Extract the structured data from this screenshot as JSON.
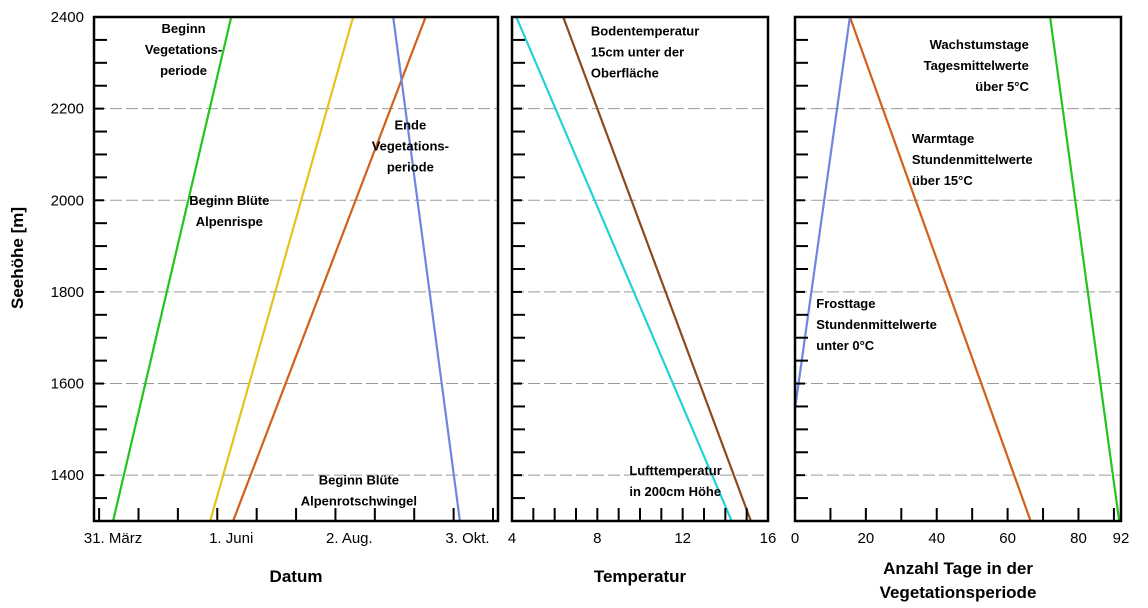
{
  "y_axis": {
    "label": "Seehöhe [m]",
    "range": [
      1300,
      2400
    ],
    "ticks": [
      1400,
      1600,
      1800,
      2000,
      2200,
      2400
    ],
    "tick_labels": [
      "1400",
      "1600",
      "1800",
      "2000",
      "2200",
      "2400"
    ],
    "gridlines": [
      1400,
      1600,
      1800,
      2000,
      2200
    ],
    "grid": true
  },
  "chart_data": [
    {
      "type": "line",
      "xlabel": "Datum",
      "x_unit": "day of year",
      "xlim": [
        80,
        292
      ],
      "x_ticks": [
        90,
        152,
        214,
        276
      ],
      "x_tick_labels": [
        "31. März",
        "1. Juni",
        "2. Aug.",
        "3. Okt."
      ],
      "x_minor_step": 20.67,
      "series": [
        {
          "name": "Beginn Vegetationsperiode",
          "color": "#22c41e",
          "points": [
            [
              90,
              1300
            ],
            [
              152,
              2400
            ]
          ]
        },
        {
          "name": "Beginn Blüte Alpenrispe",
          "color": "#e6c21c",
          "points": [
            [
              141,
              1300
            ],
            [
              216,
              2400
            ]
          ]
        },
        {
          "name": "Beginn Blüte Alpenrotschwingel",
          "color": "#d2601a",
          "points": [
            [
              153,
              1300
            ],
            [
              254,
              2400
            ]
          ]
        },
        {
          "name": "Ende Vegetationsperiode",
          "color": "#6f86e0",
          "points": [
            [
              272,
              1300
            ],
            [
              237,
              2400
            ]
          ]
        }
      ],
      "annotations": [
        {
          "lines": [
            "Beginn",
            "Vegetations-",
            "periode"
          ],
          "anchor": [
            127,
            2365
          ],
          "align": "middle"
        },
        {
          "lines": [
            "Beginn Blüte",
            "Alpenrispe"
          ],
          "anchor": [
            151,
            1990
          ],
          "align": "middle"
        },
        {
          "lines": [
            "Beginn Blüte",
            "Alpenrotschwingel"
          ],
          "anchor": [
            219,
            1380
          ],
          "align": "middle"
        },
        {
          "lines": [
            "Ende",
            "Vegetations-",
            "periode"
          ],
          "anchor": [
            246,
            2155
          ],
          "align": "middle"
        }
      ]
    },
    {
      "type": "line",
      "xlabel": "Temperatur",
      "xlim": [
        4,
        16
      ],
      "x_ticks": [
        4,
        8,
        12,
        16
      ],
      "x_tick_labels": [
        "4",
        "8",
        "12",
        "16"
      ],
      "x_minor_step": 1,
      "series": [
        {
          "name": "Bodentemperatur 15cm unter der Oberfläche",
          "color": "#8b4a1c",
          "points": [
            [
              15.2,
              1300
            ],
            [
              6.4,
              2400
            ]
          ]
        },
        {
          "name": "Lufttemperatur in 200cm Höhe",
          "color": "#22d2d6",
          "points": [
            [
              14.3,
              1300
            ],
            [
              4.2,
              2400
            ]
          ]
        }
      ],
      "annotations": [
        {
          "lines": [
            "Bodentemperatur",
            "15cm unter der",
            "Oberfläche"
          ],
          "anchor": [
            7.7,
            2360
          ],
          "align": "start"
        },
        {
          "lines": [
            "Lufttemperatur",
            "in 200cm Höhe"
          ],
          "anchor": [
            9.5,
            1400
          ],
          "align": "start"
        }
      ]
    },
    {
      "type": "line",
      "xlabel": "Anzahl Tage in der Vegetationsperiode",
      "xlim": [
        0,
        92
      ],
      "x_ticks": [
        0,
        20,
        40,
        60,
        80,
        92
      ],
      "x_tick_labels": [
        "0",
        "20",
        "40",
        "60",
        "80",
        "92"
      ],
      "x_minor_step": 10,
      "series": [
        {
          "name": "Wachstumstage Tagesmittelwerte über 5°C",
          "color": "#22c41e",
          "points": [
            [
              91.5,
              1300
            ],
            [
              72,
              2400
            ]
          ]
        },
        {
          "name": "Warmtage Stundenmittelwerte über 15°C",
          "color": "#d2601a",
          "points": [
            [
              66.5,
              1300
            ],
            [
              15.5,
              2400
            ]
          ]
        },
        {
          "name": "Frosttage Stundenmittelwerte unter 0°C",
          "color": "#6f86e0",
          "points": [
            [
              0,
              1545
            ],
            [
              15.5,
              2400
            ]
          ]
        }
      ],
      "annotations": [
        {
          "lines": [
            "Wachstumstage",
            "Tagesmittelwerte",
            "über 5°C"
          ],
          "anchor": [
            66,
            2330
          ],
          "align": "end"
        },
        {
          "lines": [
            "Warmtage",
            "Stundenmittelwerte",
            "über 15°C"
          ],
          "anchor": [
            33,
            2125
          ],
          "align": "start"
        },
        {
          "lines": [
            "Frosttage",
            "Stundenmittelwerte",
            "unter 0°C"
          ],
          "anchor": [
            6,
            1765
          ],
          "align": "start"
        }
      ]
    }
  ]
}
